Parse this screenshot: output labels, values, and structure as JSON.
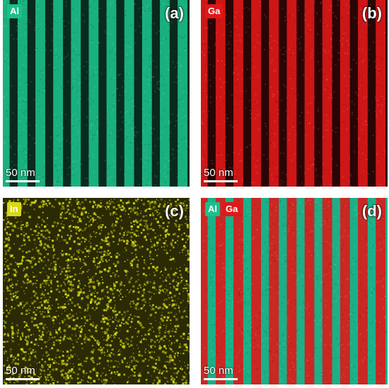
{
  "panels": [
    {
      "letter": "(a)",
      "scale_text": "50 nm",
      "pattern": "stripes",
      "stripe_count": 11,
      "base_color": "#0a2a1e",
      "stripe_color": "#1bbf8a",
      "labels": [
        {
          "text": "Al",
          "color": "#1bbf8a"
        }
      ]
    },
    {
      "letter": "(b)",
      "scale_text": "50 nm",
      "pattern": "stripes",
      "stripe_count": 11,
      "base_color": "#2a0505",
      "stripe_color": "#e01818",
      "labels": [
        {
          "text": "Ga",
          "color": "#e01818"
        }
      ]
    },
    {
      "letter": "(c)",
      "scale_text": "50 nm",
      "pattern": "noise",
      "base_color": "#2a2a05",
      "stripe_color": "#d8d818",
      "labels": [
        {
          "text": "In",
          "color": "#d8d818"
        }
      ]
    },
    {
      "letter": "(d)",
      "scale_text": "50 nm",
      "pattern": "dual-stripes",
      "stripe_count": 11,
      "base_color": "#1bb087",
      "stripe_color": "#dd1a1a",
      "labels": [
        {
          "text": "Al",
          "color": "#1bbf8a"
        },
        {
          "text": "Ga",
          "color": "#e01818"
        }
      ]
    }
  ]
}
